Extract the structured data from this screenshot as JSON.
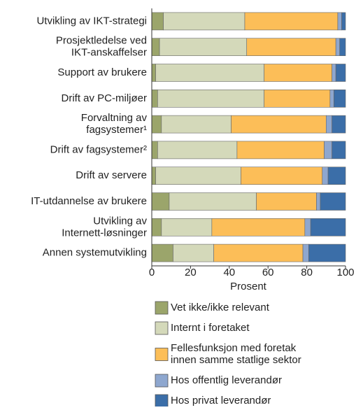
{
  "chart_data": {
    "type": "stacked-barh",
    "categories": [
      "Utvikling av IKT-strategi",
      "Prosjektledelse ved\nIKT-anskaffelser",
      "Support av brukere",
      "Drift av PC-miljøer",
      "Forvaltning av\nfagsystemer¹",
      "Drift av fagsystemer²",
      "Drift av servere",
      "IT-utdannelse av brukere",
      "Utvikling av\nInternett-løsninger",
      "Annen systemutvikling"
    ],
    "series": [
      {
        "name": "Vet ikke/ikke relevant",
        "color": "#9ba56b",
        "values": [
          6,
          4,
          2,
          3,
          5,
          3,
          2,
          9,
          5,
          11
        ]
      },
      {
        "name": "Internt i foretaket",
        "color": "#d4d9ba",
        "values": [
          42,
          45,
          56,
          55,
          36,
          41,
          44,
          45,
          26,
          21
        ]
      },
      {
        "name": "Fellesfunksjon med foretak\ninnen samme statlige sektor",
        "color": "#fcbe58",
        "values": [
          48,
          46,
          35,
          34,
          49,
          45,
          42,
          31,
          48,
          46
        ]
      },
      {
        "name": "Hos offentlig leverandør",
        "color": "#8ea7cf",
        "values": [
          2,
          2,
          2,
          2,
          3,
          4,
          3,
          2,
          3,
          3
        ]
      },
      {
        "name": "Hos privat leverandør",
        "color": "#3b6ea8",
        "values": [
          2,
          3,
          5,
          6,
          7,
          7,
          9,
          13,
          18,
          19
        ]
      }
    ],
    "xlabel": "Prosent",
    "xlim": [
      0,
      100
    ],
    "xticks": [
      0,
      20,
      40,
      60,
      80,
      100
    ]
  }
}
